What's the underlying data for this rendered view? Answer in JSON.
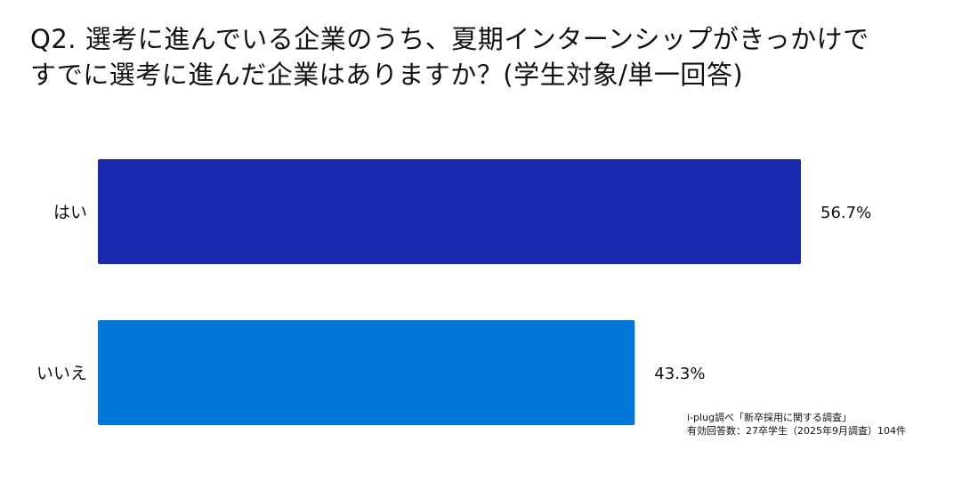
{
  "title_lines": [
    "Q2. 選考に進んでいる企業のうち、夏期インターンシップがきっかけで",
    "すでに選考に進んだ企業はありますか？(学生対象/単一回答)"
  ],
  "source_lines": [
    "i-plug調べ「新卒採用に関する調査」",
    "有効回答数：27卒学生（2025年9月調査）104件"
  ],
  "chart_data": {
    "type": "bar",
    "orientation": "horizontal",
    "title": "Q2. 選考に進んでいる企業のうち、夏期インターンシップがきっかけで すでに選考に進んだ企業はありますか？(学生対象/単一回答)",
    "categories": [
      "はい",
      "いいえ"
    ],
    "values": [
      56.7,
      43.3
    ],
    "value_labels": [
      "56.7%",
      "43.3%"
    ],
    "colors": [
      "#1a2ab0",
      "#0077d9"
    ],
    "xlim": [
      0,
      100
    ],
    "grid": false,
    "legend": "none"
  }
}
